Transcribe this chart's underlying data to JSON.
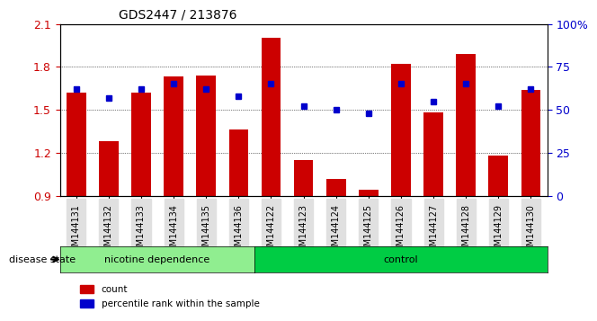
{
  "title": "GDS2447 / 213876",
  "samples": [
    "GSM144131",
    "GSM144132",
    "GSM144133",
    "GSM144134",
    "GSM144135",
    "GSM144136",
    "GSM144122",
    "GSM144123",
    "GSM144124",
    "GSM144125",
    "GSM144126",
    "GSM144127",
    "GSM144128",
    "GSM144129",
    "GSM144130"
  ],
  "red_values": [
    1.62,
    1.28,
    1.62,
    1.73,
    1.74,
    1.36,
    2.0,
    1.15,
    1.02,
    0.94,
    1.82,
    1.48,
    1.89,
    1.18,
    1.64
  ],
  "blue_values": [
    62,
    57,
    62,
    65,
    62,
    58,
    65,
    52,
    50,
    48,
    65,
    55,
    65,
    52,
    62
  ],
  "nicotine_count": 6,
  "control_count": 9,
  "ylim_left": [
    0.9,
    2.1
  ],
  "ylim_right": [
    0,
    100
  ],
  "yticks_left": [
    0.9,
    1.2,
    1.5,
    1.8,
    2.1
  ],
  "yticks_right": [
    0,
    25,
    50,
    75,
    100
  ],
  "ytick_labels_right": [
    "0",
    "25",
    "50",
    "75",
    "100%"
  ],
  "red_color": "#cc0000",
  "blue_color": "#0000cc",
  "nicotine_bg": "#90ee90",
  "control_bg": "#00cc44",
  "group_label_y": "disease state",
  "nicotine_label": "nicotine dependence",
  "control_label": "control",
  "legend_count": "count",
  "legend_percentile": "percentile rank within the sample",
  "bar_width": 0.6,
  "blue_bar_width": 0.25,
  "blue_bar_height": 0.04
}
